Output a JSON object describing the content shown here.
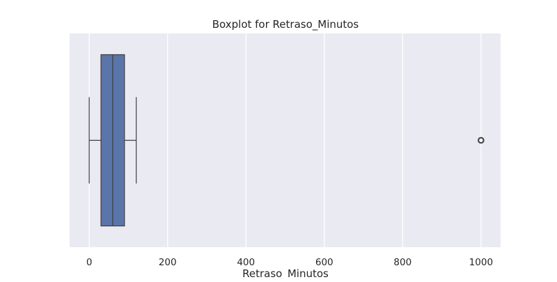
{
  "chart_data": {
    "type": "boxplot",
    "orientation": "horizontal",
    "title": "Boxplot for Retraso_Minutos",
    "xlabel": "Retraso_Minutos",
    "ylabel": "",
    "xlim": [
      -50,
      1050
    ],
    "xticks": [
      0,
      200,
      400,
      600,
      800,
      1000
    ],
    "xtick_labels": [
      "0",
      "200",
      "400",
      "600",
      "800",
      "1000"
    ],
    "grid": true,
    "box": {
      "whisker_low": 0,
      "q1": 30,
      "median": 60,
      "q3": 90,
      "whisker_high": 120
    },
    "outliers": [
      1000
    ],
    "colors": {
      "box_fill": "#5a75aa",
      "lines": "#3f3f3f",
      "plot_bg": "#eaeaf2",
      "grid": "#ffffff"
    }
  }
}
